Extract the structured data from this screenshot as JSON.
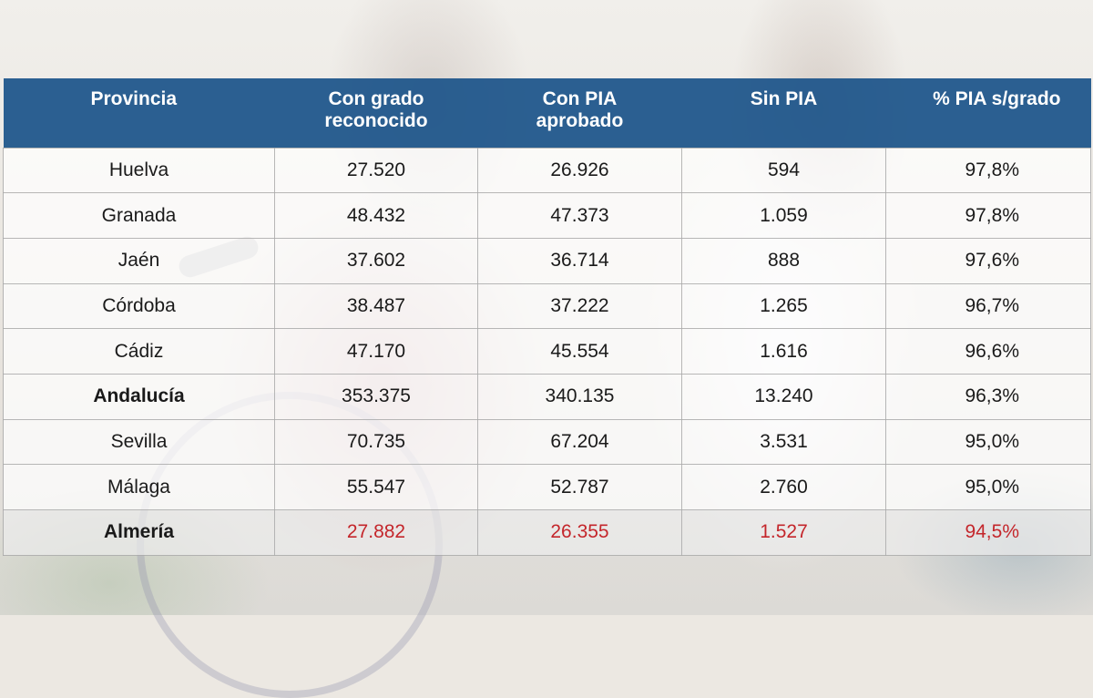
{
  "table": {
    "headers": [
      {
        "lines": [
          "Provincia"
        ]
      },
      {
        "lines": [
          "Con grado",
          "reconocido"
        ]
      },
      {
        "lines": [
          "Con PIA",
          "aprobado"
        ]
      },
      {
        "lines": [
          "Sin PIA"
        ]
      },
      {
        "lines": [
          "% PIA s/grado"
        ]
      }
    ],
    "rows": [
      {
        "province": "Huelva",
        "con_grado": "27.520",
        "con_pia": "26.926",
        "sin_pia": "594",
        "pct": "97,8%",
        "bold": false,
        "highlight": false
      },
      {
        "province": "Granada",
        "con_grado": "48.432",
        "con_pia": "47.373",
        "sin_pia": "1.059",
        "pct": "97,8%",
        "bold": false,
        "highlight": false
      },
      {
        "province": "Jaén",
        "con_grado": "37.602",
        "con_pia": "36.714",
        "sin_pia": "888",
        "pct": "97,6%",
        "bold": false,
        "highlight": false
      },
      {
        "province": "Córdoba",
        "con_grado": "38.487",
        "con_pia": "37.222",
        "sin_pia": "1.265",
        "pct": "96,7%",
        "bold": false,
        "highlight": false
      },
      {
        "province": "Cádiz",
        "con_grado": "47.170",
        "con_pia": "45.554",
        "sin_pia": "1.616",
        "pct": "96,6%",
        "bold": false,
        "highlight": false
      },
      {
        "province": "Andalucía",
        "con_grado": "353.375",
        "con_pia": "340.135",
        "sin_pia": "13.240",
        "pct": "96,3%",
        "bold": true,
        "highlight": false
      },
      {
        "province": "Sevilla",
        "con_grado": "70.735",
        "con_pia": "67.204",
        "sin_pia": "3.531",
        "pct": "95,0%",
        "bold": false,
        "highlight": false
      },
      {
        "province": "Málaga",
        "con_grado": "55.547",
        "con_pia": "52.787",
        "sin_pia": "2.760",
        "pct": "95,0%",
        "bold": false,
        "highlight": false
      },
      {
        "province": "Almería",
        "con_grado": "27.882",
        "con_pia": "26.355",
        "sin_pia": "1.527",
        "pct": "94,5%",
        "bold": true,
        "highlight": true
      }
    ]
  },
  "colors": {
    "header_bg": "#1c548a",
    "header_text": "#ffffff",
    "highlight_text": "#c4262b"
  }
}
